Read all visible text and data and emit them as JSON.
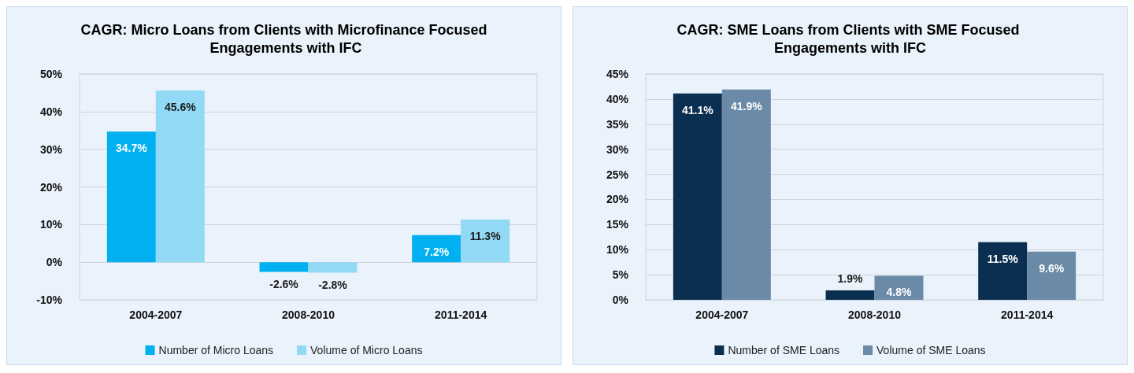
{
  "chart_data": [
    {
      "type": "bar",
      "title": "CAGR: Micro Loans from Clients with Microfinance Focused Engagements with IFC",
      "categories": [
        "2004-2007",
        "2008-2010",
        "2011-2014"
      ],
      "series": [
        {
          "name": "Number of Micro Loans",
          "color": "#00b0f0",
          "values": [
            34.7,
            -2.6,
            7.2
          ],
          "value_labels": [
            "34.7%",
            "-2.6%",
            "7.2%"
          ]
        },
        {
          "name": "Volume of Micro Loans",
          "color": "#92d9f6",
          "values": [
            45.6,
            -2.8,
            11.3
          ],
          "value_labels": [
            "45.6%",
            "-2.8%",
            "11.3%"
          ]
        }
      ],
      "ylim": [
        -10,
        50
      ],
      "yticks": [
        {
          "value": -10,
          "label": "-10%"
        },
        {
          "value": 0,
          "label": "0%"
        },
        {
          "value": 10,
          "label": "10%"
        },
        {
          "value": 20,
          "label": "20%"
        },
        {
          "value": 30,
          "label": "30%"
        },
        {
          "value": 40,
          "label": "40%"
        },
        {
          "value": 50,
          "label": "50%"
        }
      ],
      "grid": "y",
      "legend": "bottom"
    },
    {
      "type": "bar",
      "title": "CAGR: SME Loans from Clients with SME Focused Engagements with IFC",
      "categories": [
        "2004-2007",
        "2008-2010",
        "2011-2014"
      ],
      "series": [
        {
          "name": "Number of SME Loans",
          "color": "#0b2f50",
          "values": [
            41.1,
            1.9,
            11.5
          ],
          "value_labels": [
            "41.1%",
            "1.9%",
            "11.5%"
          ]
        },
        {
          "name": "Volume of SME Loans",
          "color": "#6a8aa8",
          "values": [
            41.9,
            4.8,
            9.6
          ],
          "value_labels": [
            "41.9%",
            "4.8%",
            "9.6%"
          ]
        }
      ],
      "ylim": [
        0,
        45
      ],
      "yticks": [
        {
          "value": 0,
          "label": "0%"
        },
        {
          "value": 5,
          "label": "5%"
        },
        {
          "value": 10,
          "label": "10%"
        },
        {
          "value": 15,
          "label": "15%"
        },
        {
          "value": 20,
          "label": "20%"
        },
        {
          "value": 25,
          "label": "25%"
        },
        {
          "value": 30,
          "label": "30%"
        },
        {
          "value": 35,
          "label": "35%"
        },
        {
          "value": 40,
          "label": "40%"
        },
        {
          "value": 45,
          "label": "45%"
        }
      ],
      "grid": "y",
      "legend": "bottom"
    }
  ]
}
